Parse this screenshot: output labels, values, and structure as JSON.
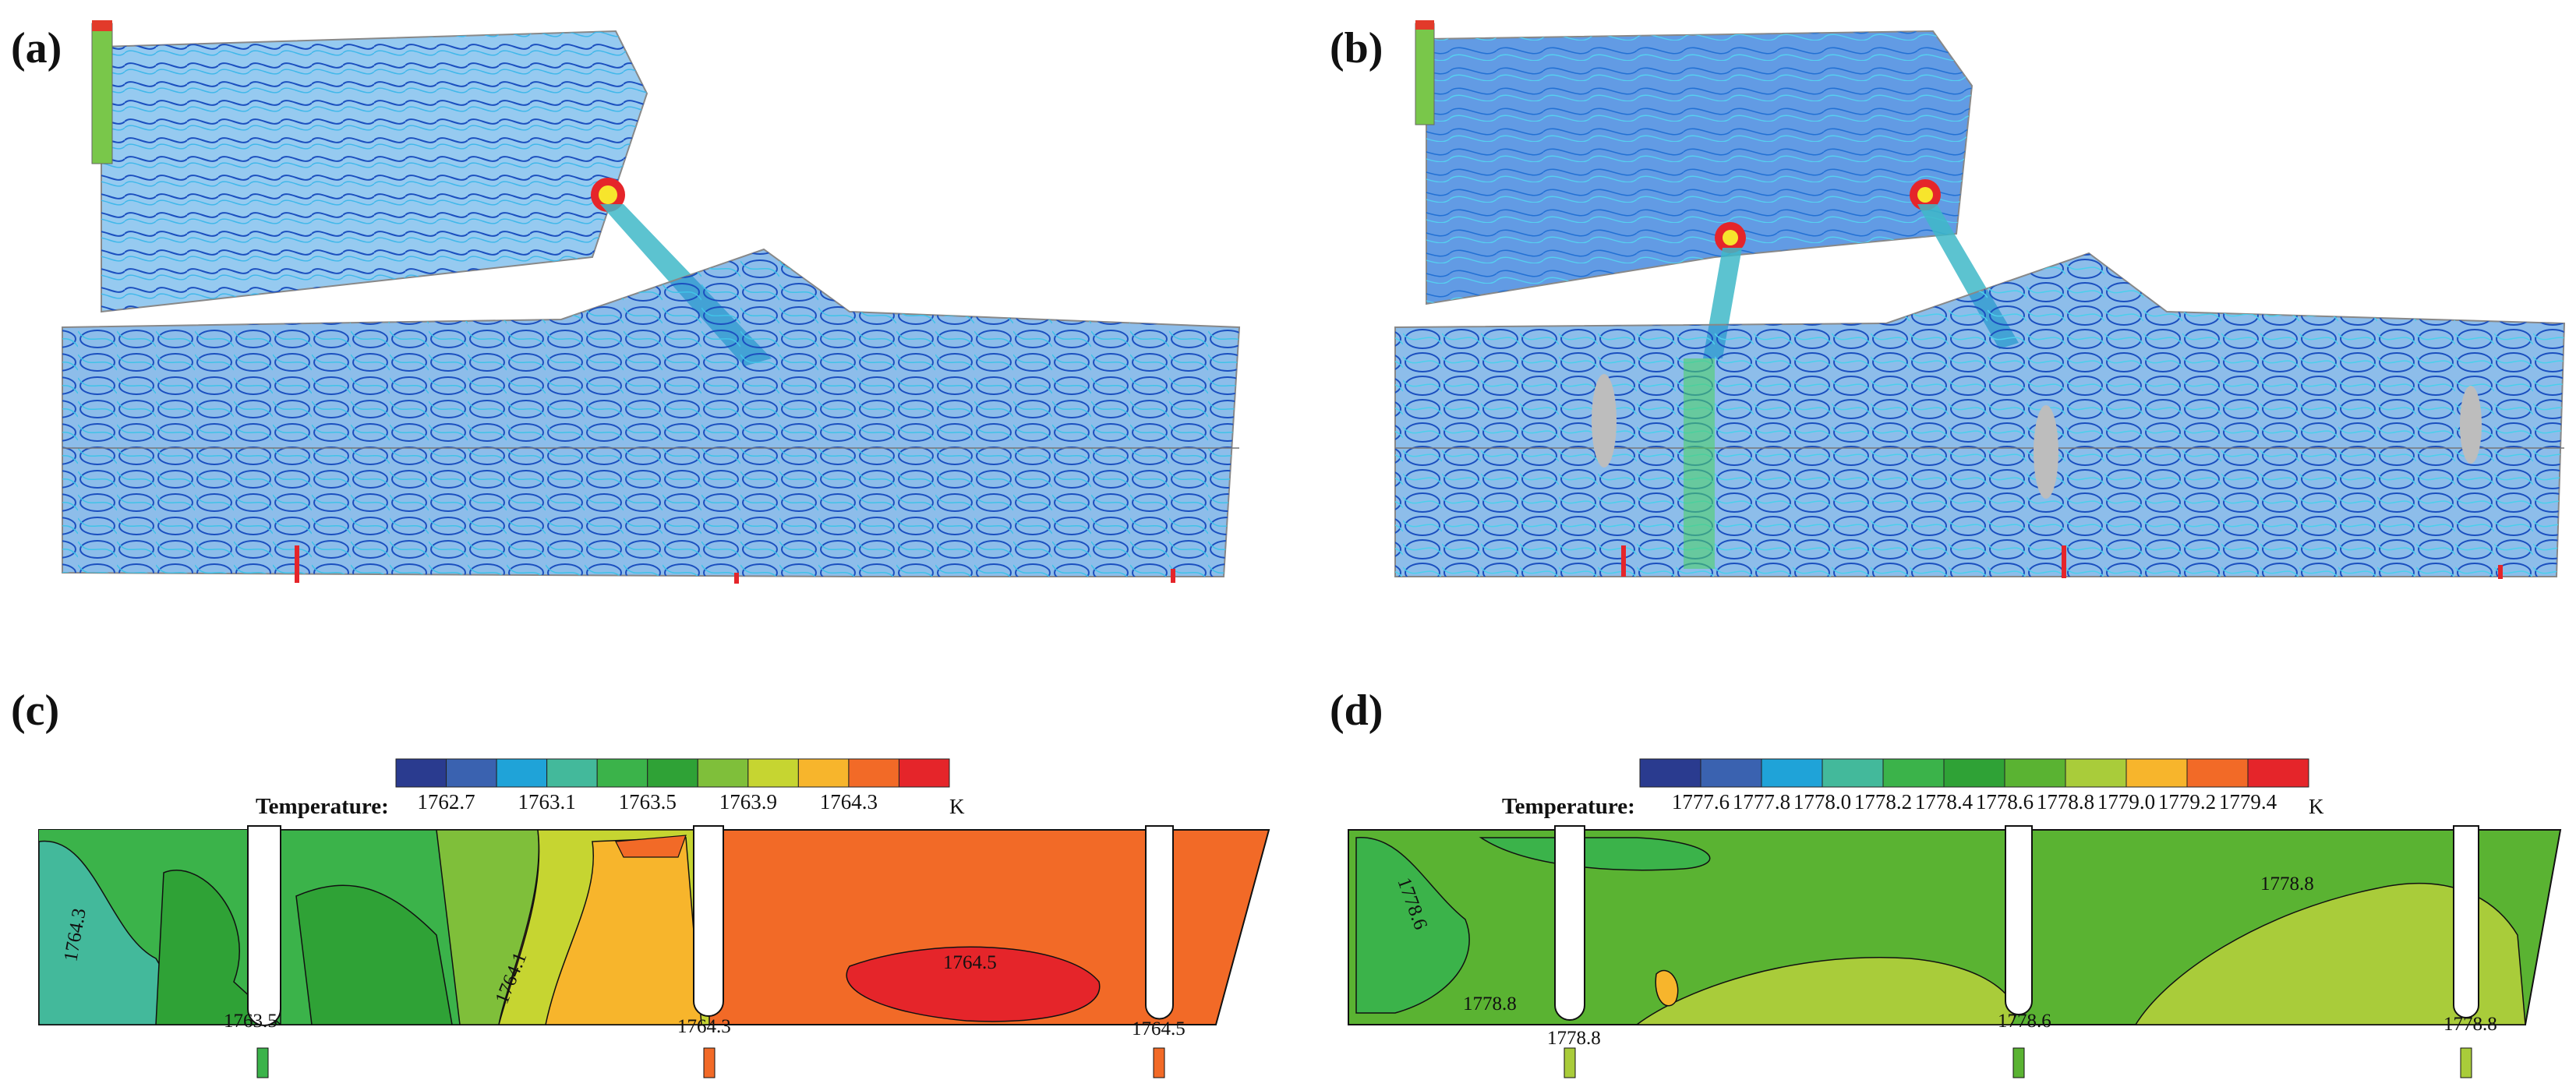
{
  "panels": {
    "a": {
      "letter": "(a)"
    },
    "b": {
      "letter": "(b)"
    },
    "c": {
      "letter": "(c)",
      "legend_title": "Temperature:",
      "unit": "K",
      "ticks": [
        "1762.7",
        "1763.1",
        "1763.5",
        "1763.9",
        "1764.3"
      ],
      "colors": [
        "#2a3b8f",
        "#3a62b0",
        "#1fa3d8",
        "#43b99b",
        "#3bb34a",
        "#2fa236",
        "#7fbf3a",
        "#c6d531",
        "#f7b52c",
        "#f26a27",
        "#e5252a"
      ],
      "iso_labels": [
        "1764.3",
        "1763.5",
        "1764.1",
        "1764.5",
        "1764.3",
        "1764.5"
      ]
    },
    "d": {
      "letter": "(d)",
      "legend_title": "Temperature:",
      "unit": "K",
      "ticks": [
        "1777.6",
        "1777.8",
        "1778.0",
        "1778.2",
        "1778.4",
        "1778.6",
        "1778.8",
        "1779.0",
        "1779.2",
        "1779.4"
      ],
      "colors": [
        "#2a3b8f",
        "#3a62b0",
        "#1fa3d8",
        "#43b99b",
        "#3bb34a",
        "#2fa236",
        "#5ab332",
        "#a9cc3a",
        "#f7b52c",
        "#f26a27",
        "#e5252a"
      ],
      "iso_labels": [
        "1778.6",
        "1778.8",
        "1778.8",
        "1778.8",
        "1778.6",
        "1778.8"
      ]
    }
  }
}
